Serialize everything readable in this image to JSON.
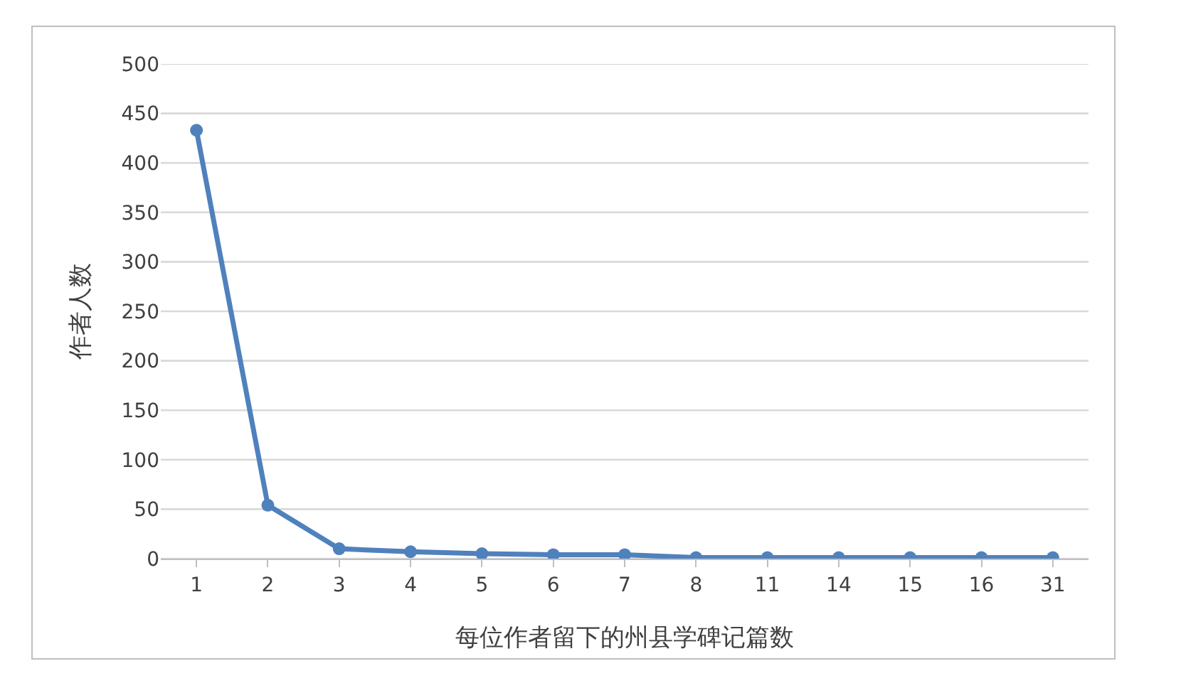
{
  "chart_data": {
    "type": "line",
    "xlabel": "每位作者留下的州县学碑记篇数",
    "ylabel": "作者人数",
    "categories": [
      "1",
      "2",
      "3",
      "4",
      "5",
      "6",
      "7",
      "8",
      "11",
      "14",
      "15",
      "16",
      "31"
    ],
    "series": [
      {
        "color": "#4f81bd",
        "values": [
          433,
          54,
          10,
          7,
          5,
          4,
          4,
          1,
          1,
          1,
          1,
          1,
          1
        ]
      }
    ],
    "ylim": [
      0,
      500
    ],
    "yticks": [
      0,
      50,
      100,
      150,
      200,
      250,
      300,
      350,
      400,
      450,
      500
    ],
    "grid": "y",
    "marker": "circle",
    "line_style": "solid"
  }
}
